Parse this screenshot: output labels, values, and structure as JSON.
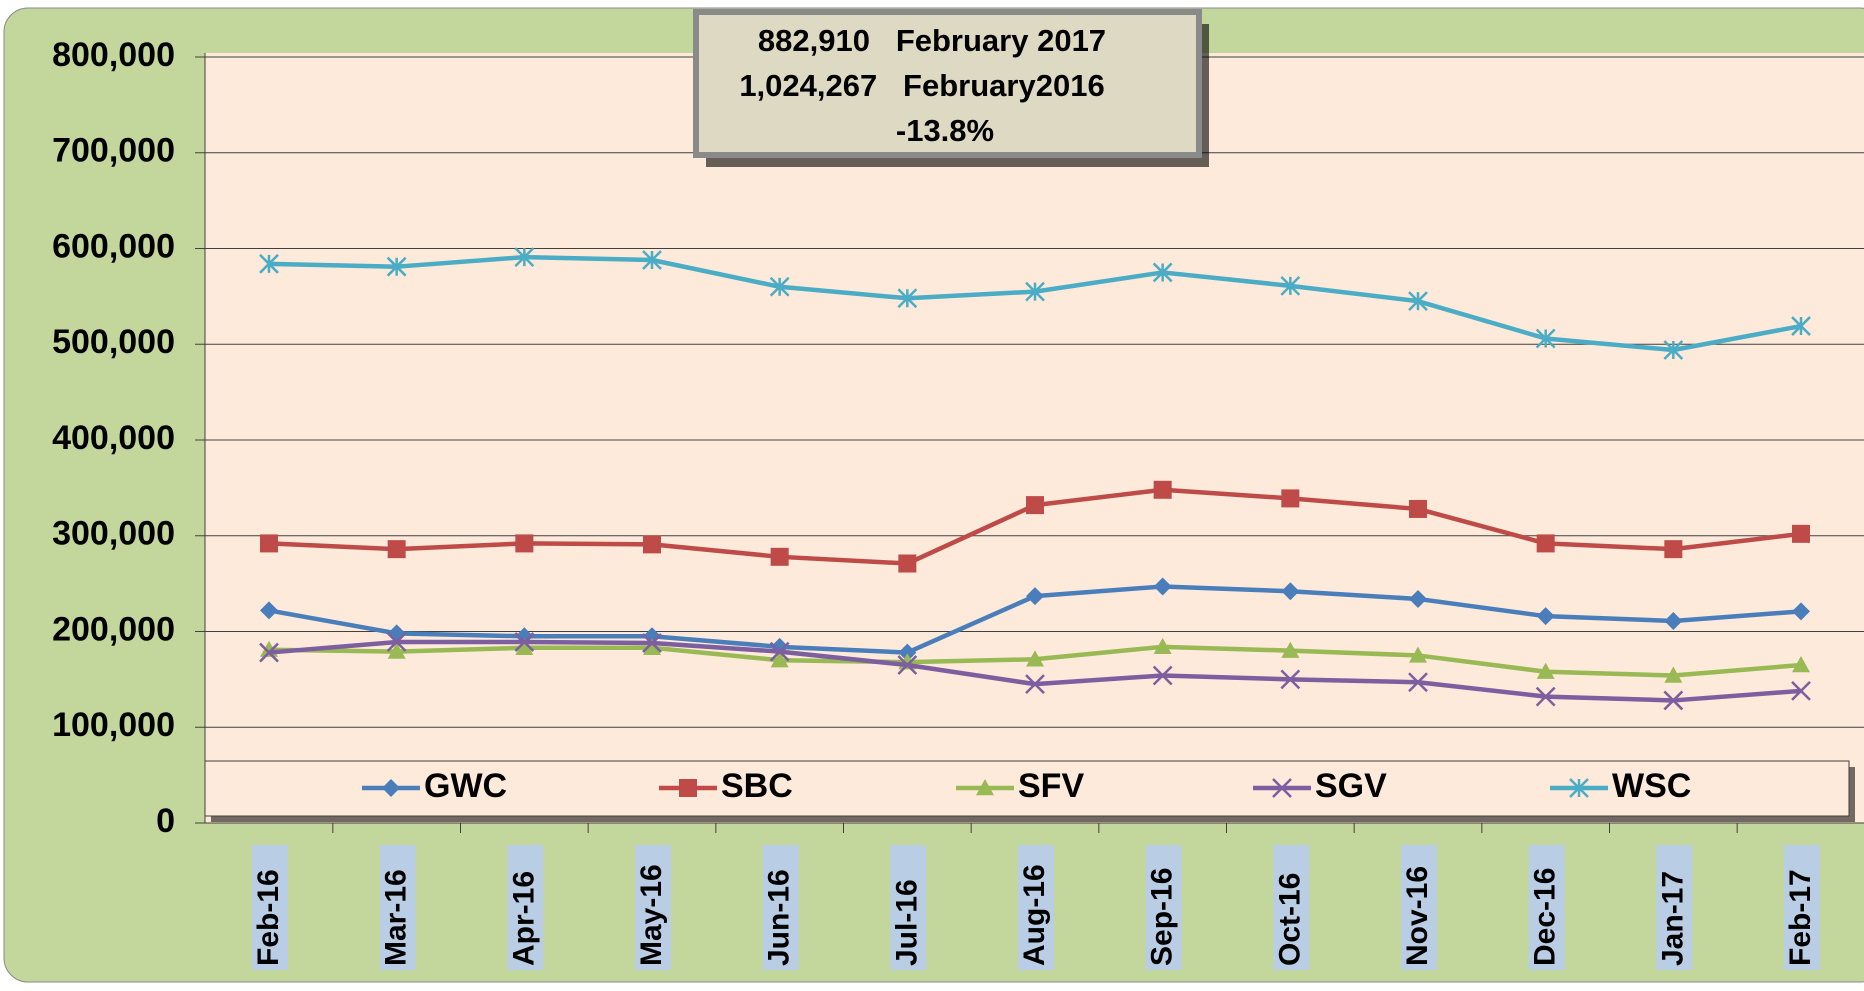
{
  "chart_data": {
    "type": "line",
    "annotation": [
      "882,910   February 2017",
      "1,024,267   February2016",
      "-13.8%"
    ],
    "categories": [
      "Feb-16",
      "Mar-16",
      "Apr-16",
      "May-16",
      "Jun-16",
      "Jul-16",
      "Aug-16",
      "Sep-16",
      "Oct-16",
      "Nov-16",
      "Dec-16",
      "Jan-17",
      "Feb-17"
    ],
    "series": [
      {
        "name": "GWC",
        "color": "#4a7ebb",
        "marker": "diamond",
        "values": [
          222000,
          198000,
          195000,
          195000,
          184000,
          178000,
          237000,
          247000,
          242000,
          234000,
          216000,
          211000,
          221000
        ]
      },
      {
        "name": "SBC",
        "color": "#be4b48",
        "marker": "square",
        "values": [
          292000,
          286000,
          292000,
          291000,
          278000,
          271000,
          332000,
          348000,
          339000,
          328000,
          292000,
          286000,
          302000
        ]
      },
      {
        "name": "SFV",
        "color": "#98b954",
        "marker": "triangle",
        "values": [
          181000,
          179000,
          183000,
          183000,
          170000,
          168000,
          171000,
          184000,
          180000,
          175000,
          158000,
          154000,
          165000
        ]
      },
      {
        "name": "SGV",
        "color": "#7d5fa0",
        "marker": "x",
        "values": [
          178000,
          189000,
          189000,
          188000,
          179000,
          165000,
          145000,
          154000,
          150000,
          147000,
          132000,
          128000,
          138000
        ]
      },
      {
        "name": "WSC",
        "color": "#4bacc6",
        "marker": "star",
        "values": [
          584000,
          581000,
          591000,
          588000,
          560000,
          548000,
          555000,
          575000,
          561000,
          545000,
          506000,
          494000,
          519000
        ]
      }
    ],
    "ylim": [
      0,
      800000
    ],
    "yticks": [
      {
        "value": 0,
        "label": "0"
      },
      {
        "value": 100000,
        "label": "100,000"
      },
      {
        "value": 200000,
        "label": "200,000"
      },
      {
        "value": 300000,
        "label": "300,000"
      },
      {
        "value": 400000,
        "label": "400,000"
      },
      {
        "value": 500000,
        "label": "500,000"
      },
      {
        "value": 600000,
        "label": "600,000"
      },
      {
        "value": 700000,
        "label": "700,000"
      },
      {
        "value": 800000,
        "label": "800,000"
      }
    ],
    "grid": true,
    "legend": "bottom"
  }
}
